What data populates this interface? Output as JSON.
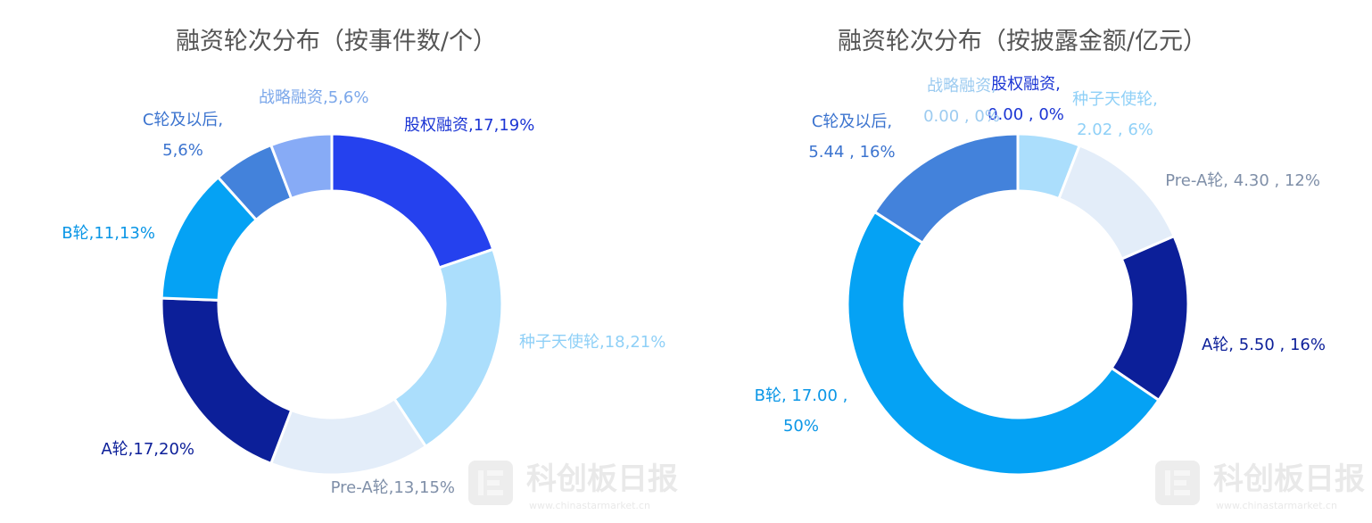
{
  "chart_data": [
    {
      "type": "pie",
      "title": "融资轮次分布（按事件数/个）",
      "slices": [
        {
          "name": "股权融资",
          "value": 17,
          "percent": "19%",
          "color": "#2541ee",
          "label": [
            "股权融资,17,19%"
          ]
        },
        {
          "name": "种子天使轮",
          "value": 18,
          "percent": "21%",
          "color": "#abdefc",
          "label": [
            "种子天使轮,18,21%"
          ]
        },
        {
          "name": "Pre-A轮",
          "value": 13,
          "percent": "15%",
          "color": "#e3edf9",
          "label": [
            "Pre-A轮,13,15%"
          ]
        },
        {
          "name": "A轮",
          "value": 17,
          "percent": "20%",
          "color": "#0c1f99",
          "label": [
            "A轮,17,20%"
          ]
        },
        {
          "name": "B轮",
          "value": 11,
          "percent": "13%",
          "color": "#05a2f4",
          "label": [
            "B轮,11,13%"
          ]
        },
        {
          "name": "C轮及以后",
          "value": 5,
          "percent": "6%",
          "color": "#4382db",
          "label": [
            "C轮及以后,",
            "5,6%"
          ]
        },
        {
          "name": "战略融资",
          "value": 5,
          "percent": "6%",
          "color": "#87abf6",
          "label": [
            "战略融资,5,6%"
          ]
        }
      ]
    },
    {
      "type": "pie",
      "title": "融资轮次分布（按披露金额/亿元）",
      "slices": [
        {
          "name": "股权融资",
          "value": 0.0,
          "percent": "0%",
          "color": "#2541ee",
          "label": [
            "股权融资,",
            "0.00 , 0%"
          ]
        },
        {
          "name": "种子天使轮",
          "value": 2.02,
          "percent": "6%",
          "color": "#abdefc",
          "label": [
            "种子天使轮,",
            "2.02 , 6%"
          ]
        },
        {
          "name": "Pre-A轮",
          "value": 4.3,
          "percent": "12%",
          "color": "#e3edf9",
          "label": [
            "Pre-A轮, 4.30 , 12%"
          ]
        },
        {
          "name": "A轮",
          "value": 5.5,
          "percent": "16%",
          "color": "#0c1f99",
          "label": [
            "A轮, 5.50 , 16%"
          ]
        },
        {
          "name": "B轮",
          "value": 17.0,
          "percent": "50%",
          "color": "#05a2f4",
          "label": [
            "B轮, 17.00 ,",
            "50%"
          ]
        },
        {
          "name": "C轮及以后",
          "value": 5.44,
          "percent": "16%",
          "color": "#4382db",
          "label": [
            "C轮及以后,",
            "5.44 , 16%"
          ]
        },
        {
          "name": "战略融资",
          "value": 0.0,
          "percent": "0%",
          "color": "#87abf6",
          "label": [
            "战略融资,",
            "0.00 , 0%"
          ]
        }
      ]
    }
  ],
  "watermark": {
    "brand": "科创板日报",
    "url": "www.chinastarmarket.cn"
  }
}
